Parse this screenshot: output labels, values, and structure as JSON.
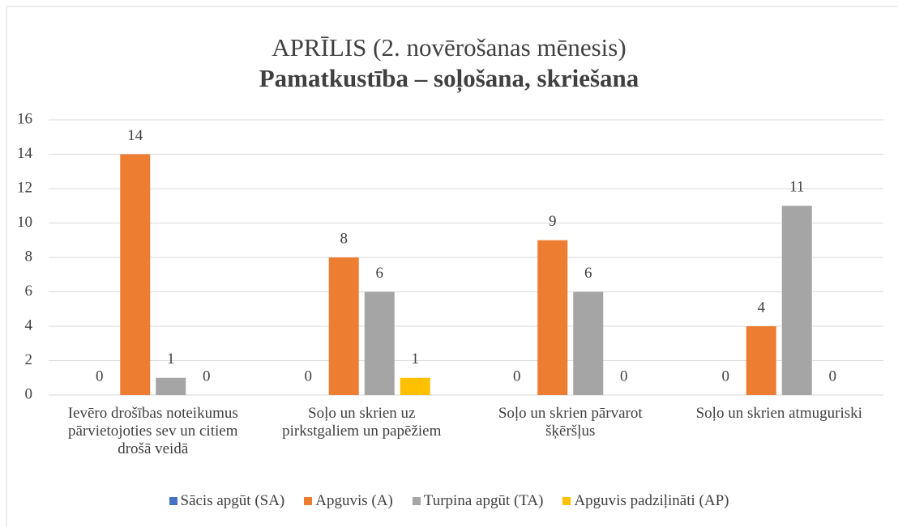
{
  "chart_data": {
    "type": "bar",
    "title": "APRĪLIS (2. novērošanas mēnesis)",
    "subtitle": "Pamatkustība – soļošana, skriešana",
    "categories": [
      "Ievēro drošības noteikumus pārvietojoties sev un citiem drošā veidā",
      "Soļo un skrien uz pirkstgaliem un papēžiem",
      "Soļo un skrien pārvarot šķēršļus",
      "Soļo un skrien atmuguriski"
    ],
    "series": [
      {
        "name": "Sācis apgūt (SA)",
        "color": "#4472c4",
        "values": [
          0,
          0,
          0,
          0
        ]
      },
      {
        "name": "Apguvis (A)",
        "color": "#ed7d31",
        "values": [
          14,
          8,
          9,
          4
        ]
      },
      {
        "name": "Turpina apgūt (TA)",
        "color": "#a5a5a5",
        "values": [
          1,
          6,
          6,
          11
        ]
      },
      {
        "name": "Apguvis padziļināti (AP)",
        "color": "#ffc000",
        "values": [
          0,
          1,
          0,
          0
        ]
      }
    ],
    "ylim": [
      0,
      16
    ],
    "yticks": [
      0,
      2,
      4,
      6,
      8,
      10,
      12,
      14,
      16
    ],
    "grid": true,
    "legend": "bottom"
  }
}
